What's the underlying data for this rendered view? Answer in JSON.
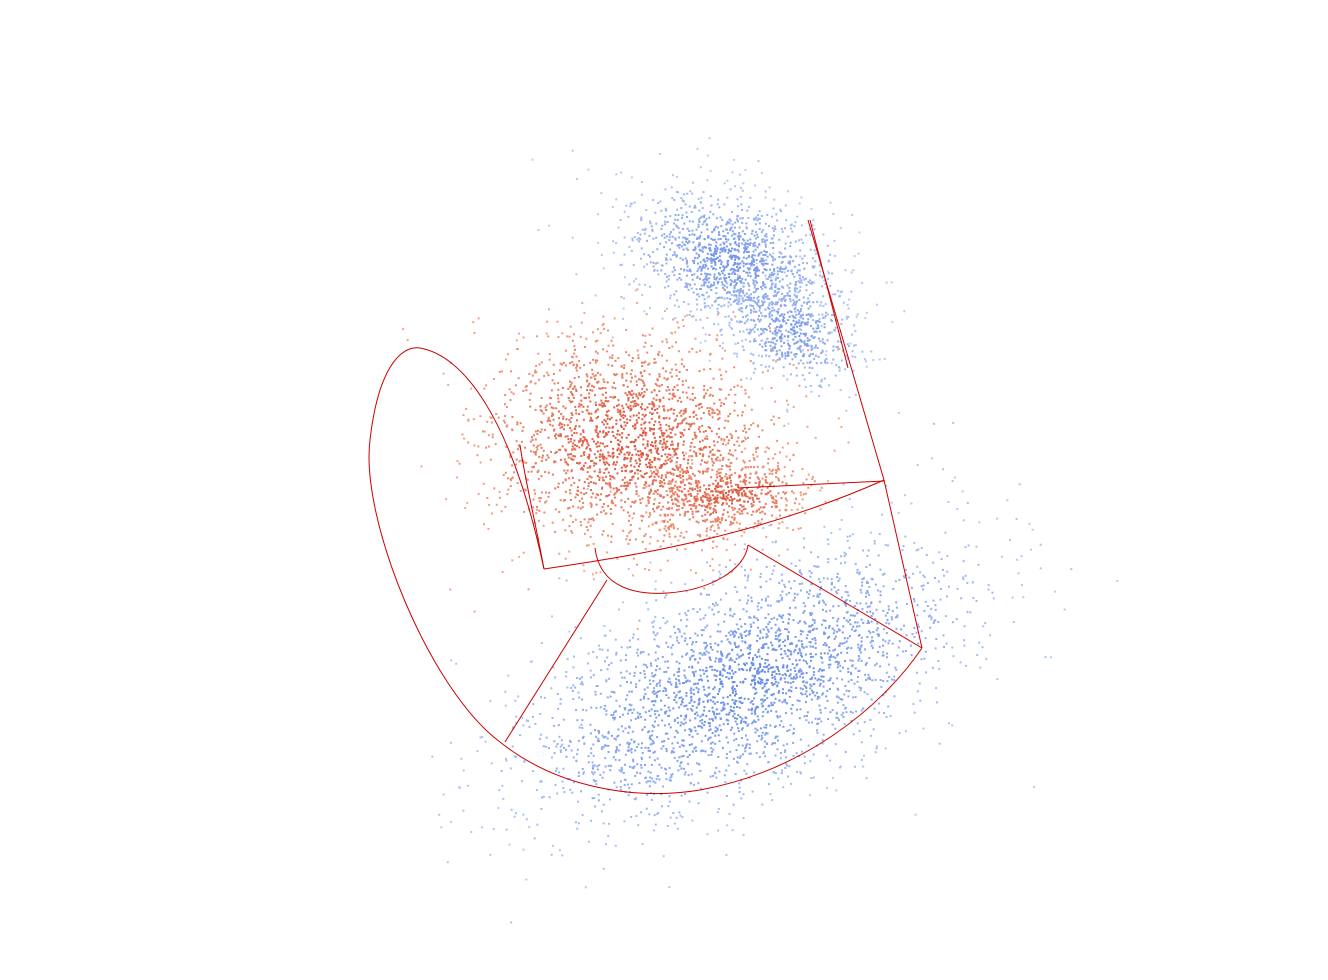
{
  "scene": {
    "background": "#ffffff",
    "outline_color": "#cc0000",
    "clusters": [
      {
        "name": "upper-blue-cloud",
        "color_core": "#6a8ee8",
        "color_edge": "#b9cdf5",
        "density": "high"
      },
      {
        "name": "center-red-cloud",
        "color_core": "#d9472f",
        "color_edge": "#f3a98a",
        "density": "high"
      },
      {
        "name": "lower-blue-cloud",
        "color_core": "#5b82e6",
        "color_edge": "#b3c8f4",
        "density": "high"
      }
    ]
  }
}
